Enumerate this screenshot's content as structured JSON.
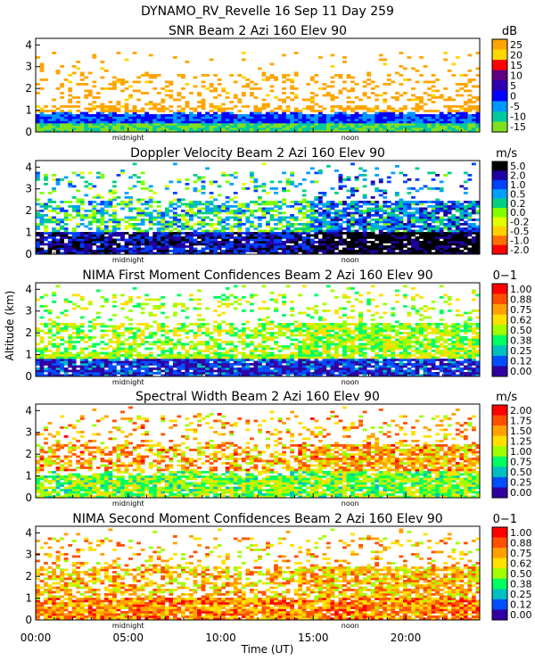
{
  "header": {
    "title_line": "DYNAMO_RV_Revelle  16 Sep 11 Day 259"
  },
  "axes": {
    "y_label": "Altitude (km)",
    "x_label": "Time (UT)",
    "x_ticks": [
      "00:00",
      "05:00",
      "10:00",
      "15:00",
      "20:00"
    ],
    "x_tick_values": [
      0,
      5,
      10,
      15,
      20
    ],
    "x_range": [
      0,
      24
    ],
    "y_ticks": [
      "0",
      "1",
      "2",
      "3",
      "4"
    ],
    "y_range": [
      0,
      4.3
    ],
    "markers": [
      {
        "label": "midnight",
        "hour": 5.0
      },
      {
        "label": "noon",
        "hour": 17.0
      }
    ]
  },
  "chart_data": [
    {
      "type": "heatmap",
      "title": "SNR Beam 2 Azi 160 Elev 90",
      "unit": "dB",
      "colorbar_labels": [
        "25",
        "20",
        "15",
        "10",
        "5",
        "0",
        "-5",
        "-10",
        "-15"
      ],
      "colorbar_colors": [
        "#ffa500",
        "#ffd700",
        "#ff0000",
        "#5e0080",
        "#2b00b0",
        "#0000ff",
        "#0096ff",
        "#00c8a0",
        "#80e020"
      ],
      "xlabel": "Time (UT)",
      "ylabel": "Altitude (km)",
      "xlim": [
        0,
        24
      ],
      "ylim": [
        0,
        4.3
      ],
      "field": "snr"
    },
    {
      "type": "heatmap",
      "title": "Doppler Velocity Beam 2 Azi 160 Elev 90",
      "unit": "m/s",
      "colorbar_labels": [
        "5.0",
        "2.0",
        "1.0",
        "0.5",
        "0.2",
        "0.0",
        "-0.2",
        "-0.5",
        "-1.0",
        "-2.0"
      ],
      "colorbar_colors": [
        "#000000",
        "#2000a0",
        "#0040ff",
        "#00a0ff",
        "#00d080",
        "#80ff00",
        "#e0ff00",
        "#ffd000",
        "#ff7000",
        "#ff0000"
      ],
      "xlabel": "Time (UT)",
      "ylabel": "Altitude (km)",
      "xlim": [
        0,
        24
      ],
      "ylim": [
        0,
        4.3
      ],
      "field": "vel"
    },
    {
      "type": "heatmap",
      "title": "NIMA First Moment Confidences Beam 2 Azi 160 Elev 90",
      "unit": "0−1",
      "colorbar_labels": [
        "1.00",
        "0.88",
        "0.75",
        "0.62",
        "0.50",
        "0.38",
        "0.25",
        "0.12",
        "0.00"
      ],
      "colorbar_colors": [
        "#ff0000",
        "#ff5000",
        "#ffa000",
        "#ffe000",
        "#a0ff00",
        "#00ff60",
        "#00c0c0",
        "#0050ff",
        "#3000a0"
      ],
      "xlabel": "Time (UT)",
      "ylabel": "Altitude (km)",
      "xlim": [
        0,
        24
      ],
      "ylim": [
        0,
        4.3
      ],
      "field": "conf1"
    },
    {
      "type": "heatmap",
      "title": "Spectral Width Beam 2 Azi 160 Elev 90",
      "unit": "m/s",
      "colorbar_labels": [
        "2.00",
        "1.75",
        "1.50",
        "1.25",
        "1.00",
        "0.75",
        "0.50",
        "0.25",
        "0.00"
      ],
      "colorbar_colors": [
        "#ff0000",
        "#ff5000",
        "#ffa000",
        "#ffe000",
        "#a0ff00",
        "#00ff60",
        "#00c0c0",
        "#0050ff",
        "#3000a0"
      ],
      "xlabel": "Time (UT)",
      "ylabel": "Altitude (km)",
      "xlim": [
        0,
        24
      ],
      "ylim": [
        0,
        4.3
      ],
      "field": "width"
    },
    {
      "type": "heatmap",
      "title": "NIMA Second Moment Confidences Beam 2 Azi 160 Elev 90",
      "unit": "0−1",
      "colorbar_labels": [
        "1.00",
        "0.88",
        "0.75",
        "0.62",
        "0.50",
        "0.38",
        "0.25",
        "0.12",
        "0.00"
      ],
      "colorbar_colors": [
        "#ff0000",
        "#ff5000",
        "#ffa000",
        "#ffe000",
        "#a0ff00",
        "#00ff60",
        "#00c0c0",
        "#0050ff",
        "#3000a0"
      ],
      "xlabel": "Time (UT)",
      "ylabel": "Altitude (km)",
      "xlim": [
        0,
        24
      ],
      "ylim": [
        0,
        4.3
      ],
      "field": "conf2"
    }
  ]
}
